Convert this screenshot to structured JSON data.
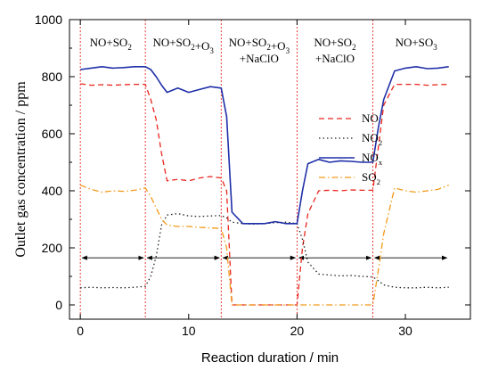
{
  "chart_data": {
    "type": "line",
    "xlabel": "Reaction duration / min",
    "ylabel": "Outlet gas concentration / ppm",
    "xlim": [
      -1,
      36
    ],
    "ylim": [
      -50,
      1000
    ],
    "xticks": [
      0,
      10,
      20,
      30
    ],
    "yticks": [
      0,
      200,
      400,
      600,
      800,
      1000
    ],
    "xtick_labels": [
      "0",
      "10",
      "20",
      "30"
    ],
    "ytick_labels": [
      "0",
      "200",
      "400",
      "600",
      "800",
      "1000"
    ],
    "grid": false,
    "legend_position": "right-middle",
    "phase_boundaries": [
      0,
      6,
      13,
      20,
      27
    ],
    "phase_labels": [
      {
        "x": 2.8,
        "lines": [
          {
            "t": "NO+SO",
            "s": "2"
          }
        ]
      },
      {
        "x": 9.5,
        "lines": [
          {
            "t": "NO+SO",
            "s": "2"
          },
          {
            "t": "+O",
            "s": "3"
          }
        ]
      },
      {
        "x": 16.5,
        "lines": [
          {
            "t": "NO+SO",
            "s": "2"
          },
          {
            "t": "+O",
            "s": "3"
          },
          {
            "t": "+NaClO",
            "s": ""
          }
        ],
        "second_line": [
          {
            "t": "+NaClO",
            "s": ""
          }
        ]
      },
      {
        "x": 23.5,
        "lines": [
          {
            "t": "NO+SO",
            "s": "2"
          }
        ],
        "second_line": [
          {
            "t": "+NaClO",
            "s": ""
          }
        ]
      },
      {
        "x": 31.0,
        "lines": [
          {
            "t": "NO+SO",
            "s": "3"
          }
        ]
      }
    ],
    "arrow_y": 165,
    "series": [
      {
        "name": "NO",
        "color": "#e8261e",
        "dash": "6,4",
        "x": [
          0,
          1,
          2,
          3,
          4,
          5,
          6,
          6.5,
          7,
          7.5,
          8,
          9,
          10,
          11,
          12,
          13,
          13.5,
          14,
          15,
          16,
          17,
          18,
          19,
          20,
          20.5,
          21,
          22,
          23,
          24,
          25,
          26,
          27,
          27.5,
          28,
          29,
          30,
          31,
          32,
          33,
          34
        ],
        "y": [
          775,
          770,
          772,
          770,
          772,
          773,
          773,
          720,
          650,
          530,
          435,
          440,
          435,
          445,
          450,
          445,
          400,
          0,
          0,
          0,
          0,
          0,
          0,
          0,
          200,
          320,
          400,
          402,
          400,
          403,
          402,
          402,
          550,
          700,
          773,
          773,
          773,
          770,
          772,
          773
        ]
      },
      {
        "name": "NO2",
        "color": "#222222",
        "dash": "1.5,3",
        "x": [
          0,
          1,
          2,
          3,
          4,
          5,
          6,
          6.5,
          7,
          7.5,
          8,
          9,
          10,
          11,
          12,
          13,
          13.5,
          14,
          15,
          16,
          17,
          18,
          19,
          20,
          20.5,
          21,
          22,
          23,
          24,
          25,
          26,
          27,
          27.5,
          28,
          29,
          30,
          31,
          32,
          33,
          34
        ],
        "y": [
          60,
          62,
          60,
          61,
          60,
          62,
          65,
          100,
          170,
          280,
          315,
          320,
          312,
          310,
          312,
          313,
          305,
          290,
          285,
          283,
          285,
          288,
          290,
          285,
          230,
          150,
          108,
          105,
          102,
          103,
          100,
          98,
          85,
          70,
          62,
          60,
          60,
          62,
          60,
          62
        ]
      },
      {
        "name": "NOx",
        "color": "#1f2fa8",
        "dash": "",
        "x": [
          0,
          1,
          2,
          3,
          4,
          5,
          6,
          6.5,
          7,
          7.5,
          8,
          9,
          10,
          11,
          12,
          13,
          13.5,
          14,
          15,
          16,
          17,
          18,
          19,
          20,
          20.5,
          21,
          22,
          23,
          24,
          25,
          26,
          27,
          27.5,
          28,
          29,
          30,
          31,
          32,
          33,
          34
        ],
        "y": [
          825,
          830,
          835,
          830,
          832,
          835,
          835,
          825,
          800,
          770,
          745,
          760,
          745,
          755,
          765,
          760,
          660,
          325,
          285,
          285,
          285,
          292,
          285,
          285,
          400,
          495,
          510,
          500,
          505,
          503,
          500,
          500,
          620,
          720,
          820,
          830,
          835,
          828,
          830,
          835
        ]
      },
      {
        "name": "SO2",
        "color": "#f29a1a",
        "dash": "7,3,1.5,3",
        "x": [
          0,
          1,
          2,
          3,
          4,
          5,
          6,
          6.5,
          7,
          7.5,
          8,
          9,
          10,
          11,
          12,
          13,
          13.5,
          14,
          15,
          16,
          17,
          18,
          19,
          20,
          20.5,
          21,
          22,
          23,
          24,
          25,
          26,
          27,
          27.5,
          28,
          29,
          30,
          31,
          32,
          33,
          34
        ],
        "y": [
          420,
          405,
          395,
          400,
          398,
          402,
          410,
          380,
          340,
          300,
          280,
          275,
          275,
          272,
          270,
          268,
          200,
          0,
          0,
          0,
          0,
          0,
          0,
          0,
          0,
          0,
          0,
          0,
          0,
          0,
          0,
          0,
          120,
          250,
          410,
          400,
          395,
          400,
          405,
          420
        ]
      }
    ],
    "legend": [
      {
        "label": "NO",
        "sub": ""
      },
      {
        "label": "NO",
        "sub": "2"
      },
      {
        "label": "NO",
        "sub": "x"
      },
      {
        "label": "SO",
        "sub": "2"
      }
    ]
  }
}
